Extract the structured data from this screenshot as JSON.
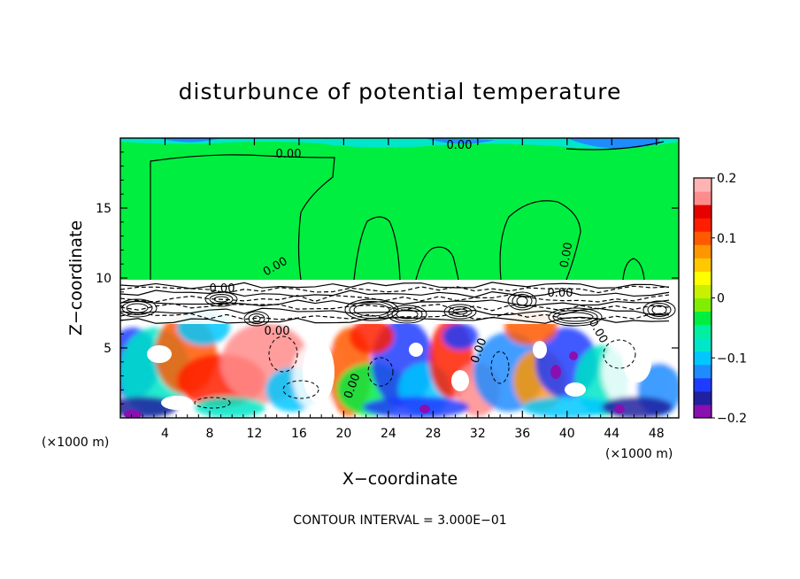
{
  "chart_data": {
    "type": "heatmap",
    "title": "disturbunce of potential temperature",
    "xlabel": "X−coordinate",
    "ylabel": "Z−coordinate",
    "x_unit": "(×1000 m)",
    "z_unit": "(×1000 m)",
    "xlim": [
      0,
      50
    ],
    "ylim": [
      0,
      20
    ],
    "x_ticks": [
      4,
      8,
      12,
      16,
      20,
      24,
      28,
      32,
      36,
      40,
      44,
      48
    ],
    "y_ticks": [
      5,
      10,
      15
    ],
    "footer": "CONTOUR INTERVAL = 3.000E−01",
    "contour_label": "0.00",
    "colorbar": {
      "ticks": [
        "0.2",
        "0.1",
        "0",
        "−0.1",
        "−0.2"
      ],
      "tick_values": [
        0.2,
        0.1,
        0,
        -0.1,
        -0.2
      ],
      "range": [
        -0.2,
        0.2
      ],
      "colors": [
        "#8a0fb0",
        "#2020a0",
        "#1e3cff",
        "#1e8cff",
        "#00c8ff",
        "#00e6c8",
        "#00f0a0",
        "#00ee40",
        "#80ee00",
        "#c8f000",
        "#ffff00",
        "#ffc800",
        "#ff9600",
        "#ff5a00",
        "#ff1e00",
        "#e60000",
        "#ff8c8c",
        "#ffb4b4"
      ]
    },
    "legend": "colorbar right",
    "grid": false
  }
}
